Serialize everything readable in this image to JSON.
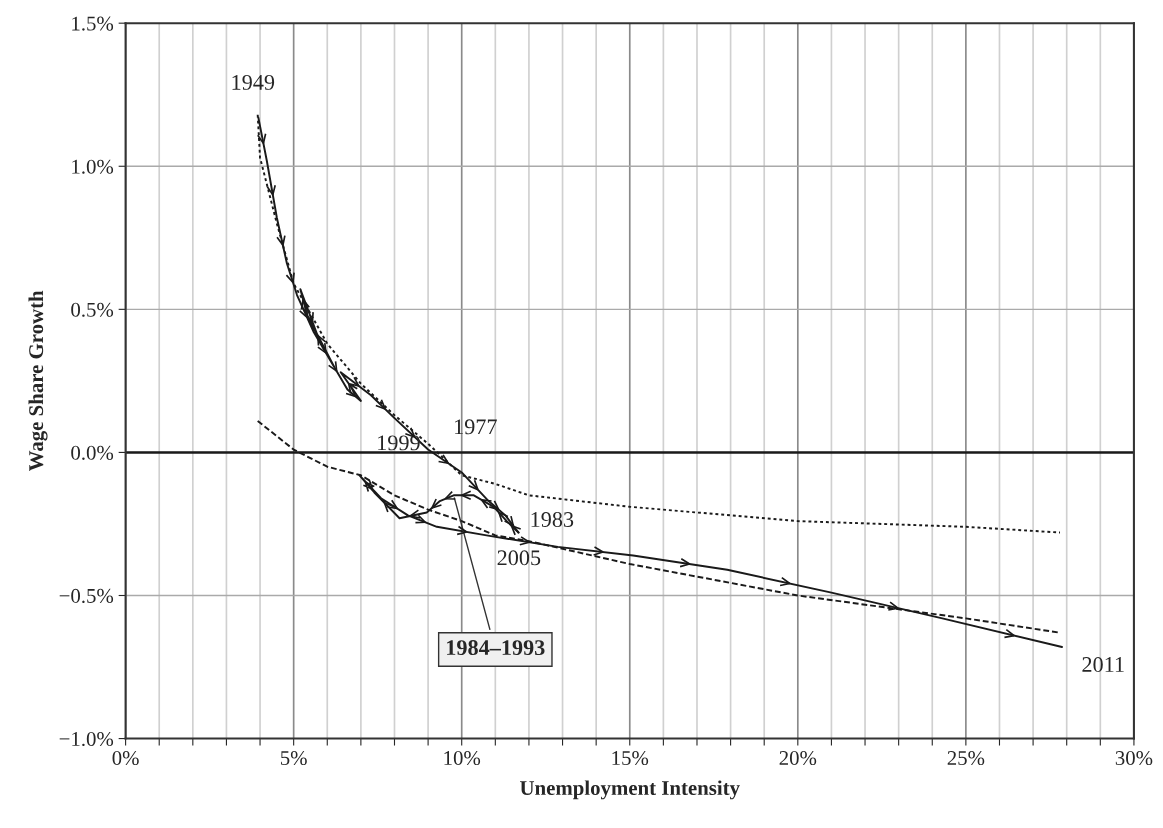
{
  "chart_data": {
    "type": "line",
    "xlabel": "Unemployment Intensity",
    "ylabel": "Wage Share Growth",
    "xlim": [
      0,
      30
    ],
    "ylim": [
      -1.0,
      1.5
    ],
    "xticks": [
      {
        "value": 0,
        "label": "0%"
      },
      {
        "value": 1,
        "label": null
      },
      {
        "value": 2,
        "label": null
      },
      {
        "value": 3,
        "label": null
      },
      {
        "value": 4,
        "label": null
      },
      {
        "value": 5,
        "label": "5%"
      },
      {
        "value": 6,
        "label": null
      },
      {
        "value": 7,
        "label": null
      },
      {
        "value": 8,
        "label": null
      },
      {
        "value": 9,
        "label": null
      },
      {
        "value": 10,
        "label": "10%"
      },
      {
        "value": 11,
        "label": null
      },
      {
        "value": 12,
        "label": null
      },
      {
        "value": 13,
        "label": null
      },
      {
        "value": 14,
        "label": null
      },
      {
        "value": 15,
        "label": "15%"
      },
      {
        "value": 16,
        "label": null
      },
      {
        "value": 17,
        "label": null
      },
      {
        "value": 18,
        "label": null
      },
      {
        "value": 19,
        "label": null
      },
      {
        "value": 20,
        "label": "20%"
      },
      {
        "value": 21,
        "label": null
      },
      {
        "value": 22,
        "label": null
      },
      {
        "value": 23,
        "label": null
      },
      {
        "value": 24,
        "label": null
      },
      {
        "value": 25,
        "label": "25%"
      },
      {
        "value": 26,
        "label": null
      },
      {
        "value": 27,
        "label": null
      },
      {
        "value": 28,
        "label": null
      },
      {
        "value": 29,
        "label": null
      },
      {
        "value": 30,
        "label": "30%"
      }
    ],
    "yticks": [
      {
        "value": -1.0,
        "label": "−1.0%"
      },
      {
        "value": -0.5,
        "label": "−0.5%"
      },
      {
        "value": 0.0,
        "label": "0.0%"
      },
      {
        "value": 0.5,
        "label": "0.5%"
      },
      {
        "value": 1.0,
        "label": "1.0%"
      },
      {
        "value": 1.5,
        "label": "1.5%"
      }
    ],
    "grid": true,
    "legend": false,
    "ref_lines": [
      {
        "axis": "y",
        "value": 0,
        "color": "#1a1a1a",
        "line_style": "solid"
      }
    ],
    "series": [
      {
        "color": "#1a1a1a",
        "line_style": "dotted",
        "x": [
          3.93,
          4.0,
          4.5,
          5.0,
          6.0,
          7.0,
          8.0,
          9.0,
          10.0,
          11.0,
          12.0,
          15.0,
          20.0,
          25.0,
          27.8
        ],
        "values": [
          1.18,
          1.03,
          0.8,
          0.59,
          0.38,
          0.24,
          0.13,
          0.03,
          -0.08,
          -0.11,
          -0.15,
          -0.19,
          -0.24,
          -0.26,
          -0.28
        ]
      },
      {
        "color": "#1a1a1a",
        "line_style": "dashed",
        "x": [
          3.93,
          5.0,
          6.0,
          7.0,
          8.0,
          9.0,
          10.0,
          11.0,
          12.0,
          15.0,
          20.0,
          25.0,
          27.8
        ],
        "values": [
          0.11,
          0.01,
          -0.05,
          -0.08,
          -0.15,
          -0.2,
          -0.24,
          -0.29,
          -0.31,
          -0.39,
          -0.5,
          -0.58,
          -0.63
        ]
      },
      {
        "color": "#1a1a1a",
        "line_style": "solid",
        "x": [
          3.95,
          4.2,
          4.5,
          4.8,
          5.1,
          5.6,
          6.2,
          5.4,
          5.2,
          5.8,
          6.6,
          7.0,
          6.4,
          7.3,
          8.0,
          9.0,
          10.0,
          10.8,
          11.3,
          11.69
        ],
        "values": [
          1.17,
          1.02,
          0.82,
          0.66,
          0.55,
          0.42,
          0.3,
          0.48,
          0.57,
          0.38,
          0.22,
          0.18,
          0.28,
          0.2,
          0.12,
          0.01,
          -0.07,
          -0.17,
          -0.22,
          -0.28
        ]
      },
      {
        "color": "#1a1a1a",
        "line_style": "solid",
        "x": [
          11.69,
          11.34,
          10.95,
          10.36,
          9.76,
          9.35,
          8.96,
          8.15,
          7.4,
          6.96,
          7.6,
          8.4,
          9.26,
          10.74,
          12.86,
          15.1,
          17.9,
          21.0,
          24.3,
          27.86
        ],
        "values": [
          -0.28,
          -0.24,
          -0.19,
          -0.15,
          -0.15,
          -0.17,
          -0.21,
          -0.23,
          -0.14,
          -0.08,
          -0.16,
          -0.22,
          -0.26,
          -0.29,
          -0.33,
          -0.36,
          -0.41,
          -0.49,
          -0.58,
          -0.68
        ]
      }
    ],
    "annotations": [
      {
        "text": "1949",
        "x": 3.95,
        "y": 1.17
      },
      {
        "text": "1977",
        "x": 9.0,
        "y": 0.01
      },
      {
        "text": "1999",
        "x": 6.96,
        "y": -0.08
      },
      {
        "text": "1983",
        "x": 11.69,
        "y": -0.28
      },
      "2005",
      {
        "text": "2011",
        "x": 27.86,
        "y": -0.68
      },
      {
        "text": "1984–1993",
        "x": 9.76,
        "y": -0.15
      }
    ]
  }
}
